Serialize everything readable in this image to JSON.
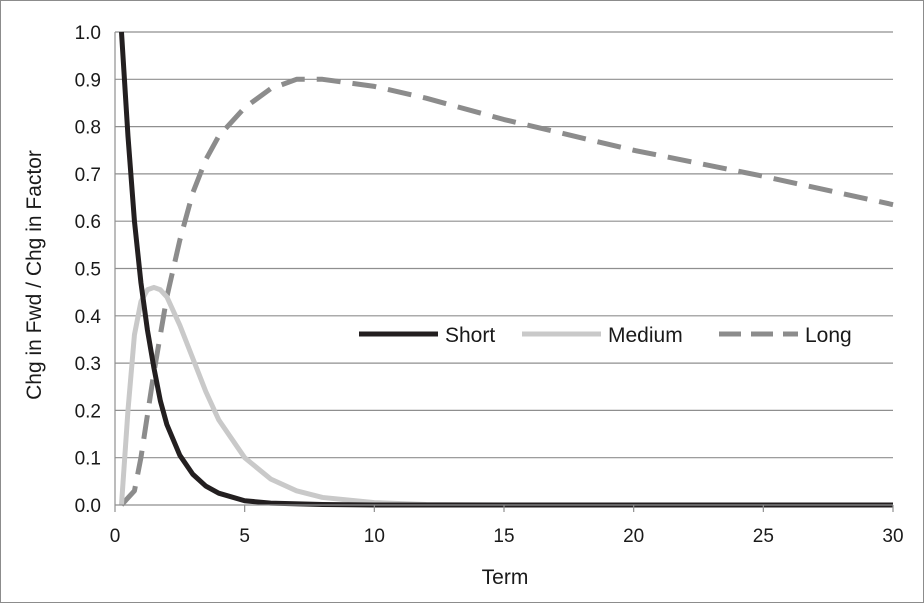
{
  "chart_data": {
    "type": "line",
    "title": "",
    "xlabel": "Term",
    "ylabel": "Chg in Fwd / Chg in Factor",
    "xlim": [
      0,
      30
    ],
    "ylim": [
      0,
      1.0
    ],
    "x_ticks": [
      "0",
      "5",
      "10",
      "15",
      "20",
      "25",
      "30"
    ],
    "y_ticks": [
      "0.0",
      "0.1",
      "0.2",
      "0.3",
      "0.4",
      "0.5",
      "0.6",
      "0.7",
      "0.8",
      "0.9",
      "1.0"
    ],
    "grid": "horizontal",
    "legend_position": "center-right",
    "series": [
      {
        "name": "Short",
        "color": "#231f20",
        "style": "solid",
        "points": [
          [
            0.25,
            1.0
          ],
          [
            0.5,
            0.78
          ],
          [
            0.75,
            0.6
          ],
          [
            1.0,
            0.47
          ],
          [
            1.25,
            0.37
          ],
          [
            1.5,
            0.29
          ],
          [
            1.75,
            0.22
          ],
          [
            2.0,
            0.17
          ],
          [
            2.5,
            0.105
          ],
          [
            3.0,
            0.065
          ],
          [
            3.5,
            0.04
          ],
          [
            4.0,
            0.025
          ],
          [
            5.0,
            0.009
          ],
          [
            6.0,
            0.004
          ],
          [
            8.0,
            0.001
          ],
          [
            10.0,
            0.0
          ],
          [
            15.0,
            0.0
          ],
          [
            20.0,
            0.0
          ],
          [
            25.0,
            0.0
          ],
          [
            30.0,
            0.0
          ]
        ]
      },
      {
        "name": "Medium",
        "color": "#c9c9c9",
        "style": "solid",
        "points": [
          [
            0.25,
            0.0
          ],
          [
            0.5,
            0.2
          ],
          [
            0.75,
            0.36
          ],
          [
            1.0,
            0.43
          ],
          [
            1.25,
            0.455
          ],
          [
            1.5,
            0.46
          ],
          [
            1.75,
            0.455
          ],
          [
            2.0,
            0.44
          ],
          [
            2.5,
            0.38
          ],
          [
            3.0,
            0.31
          ],
          [
            3.5,
            0.24
          ],
          [
            4.0,
            0.18
          ],
          [
            5.0,
            0.1
          ],
          [
            6.0,
            0.055
          ],
          [
            7.0,
            0.03
          ],
          [
            8.0,
            0.016
          ],
          [
            10.0,
            0.005
          ],
          [
            12.0,
            0.001
          ],
          [
            15.0,
            0.0
          ],
          [
            20.0,
            0.0
          ],
          [
            25.0,
            0.0
          ],
          [
            30.0,
            0.0
          ]
        ]
      },
      {
        "name": "Long",
        "color": "#8c8c8c",
        "style": "dashed",
        "points": [
          [
            0.25,
            0.0
          ],
          [
            0.75,
            0.03
          ],
          [
            1.0,
            0.1
          ],
          [
            1.5,
            0.28
          ],
          [
            2.0,
            0.44
          ],
          [
            2.5,
            0.56
          ],
          [
            3.0,
            0.66
          ],
          [
            3.5,
            0.73
          ],
          [
            4.0,
            0.78
          ],
          [
            5.0,
            0.84
          ],
          [
            6.0,
            0.88
          ],
          [
            7.0,
            0.9
          ],
          [
            8.0,
            0.9
          ],
          [
            10.0,
            0.885
          ],
          [
            12.0,
            0.86
          ],
          [
            15.0,
            0.815
          ],
          [
            20.0,
            0.75
          ],
          [
            25.0,
            0.695
          ],
          [
            30.0,
            0.635
          ]
        ]
      }
    ]
  }
}
